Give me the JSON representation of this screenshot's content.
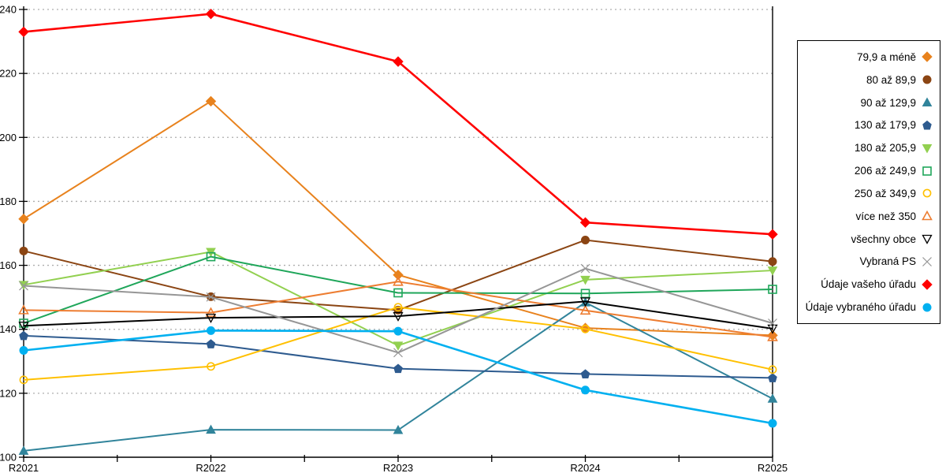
{
  "chart_data": {
    "type": "line",
    "title": "",
    "xlabel": "",
    "ylabel": "",
    "categories": [
      "R2021",
      "R2022",
      "R2023",
      "R2024",
      "R2025"
    ],
    "y_ticks": [
      100,
      120,
      140,
      160,
      180,
      200,
      220,
      240
    ],
    "ylim": [
      100,
      240
    ],
    "grid": "horizontal-dotted",
    "legend_position": "right",
    "series": [
      {
        "name": "79,9 a méně",
        "color": "#E8821D",
        "marker": "diamond",
        "fill": "solid",
        "values": [
          174.5,
          211.3,
          157.0,
          140.4,
          138.1
        ]
      },
      {
        "name": "80 až 89,9",
        "color": "#8B4513",
        "marker": "circle",
        "fill": "solid",
        "values": [
          164.5,
          150.2,
          146.0,
          167.9,
          161.2
        ]
      },
      {
        "name": "90 až 129,9",
        "color": "#31849B",
        "marker": "triangle-up",
        "fill": "solid",
        "values": [
          102.0,
          108.6,
          108.5,
          148.4,
          118.3
        ]
      },
      {
        "name": "130 až 179,9",
        "color": "#2E5B8F",
        "marker": "pentagon",
        "fill": "solid",
        "values": [
          138.0,
          135.4,
          127.7,
          126.0,
          124.8
        ]
      },
      {
        "name": "180 až 205,9",
        "color": "#92D050",
        "marker": "triangle-down",
        "fill": "solid",
        "values": [
          153.9,
          164.2,
          134.9,
          155.5,
          158.4
        ]
      },
      {
        "name": "206 až 249,9",
        "color": "#1FA65A",
        "marker": "square",
        "fill": "open",
        "values": [
          141.9,
          162.7,
          151.4,
          151.2,
          152.5
        ]
      },
      {
        "name": "250 až 349,9",
        "color": "#FFC000",
        "marker": "circle",
        "fill": "open",
        "values": [
          124.2,
          128.4,
          146.9,
          140.1,
          127.4
        ]
      },
      {
        "name": "více než 350",
        "color": "#ED7D31",
        "marker": "triangle-up",
        "fill": "open",
        "values": [
          146.0,
          145.2,
          154.9,
          145.9,
          137.6
        ]
      },
      {
        "name": "všechny obce",
        "color": "#000000",
        "marker": "triangle-down",
        "fill": "open",
        "values": [
          141.1,
          143.6,
          144.1,
          148.7,
          140.2
        ]
      },
      {
        "name": "Vybraná PS",
        "color": "#969696",
        "marker": "x",
        "fill": "open",
        "values": [
          153.6,
          150.1,
          132.7,
          159.0,
          141.9
        ]
      },
      {
        "name": "Údaje vašeho úřadu",
        "color": "#FF0000",
        "marker": "diamond",
        "fill": "solid",
        "values": [
          233.0,
          238.6,
          223.7,
          173.4,
          169.7
        ]
      },
      {
        "name": "Údaje vybraného úřadu",
        "color": "#00B0F0",
        "marker": "circle",
        "fill": "solid",
        "values": [
          133.4,
          139.6,
          139.4,
          121.0,
          110.6
        ]
      }
    ]
  },
  "colors": {
    "grid": "#ADADAD",
    "axis": "#000000"
  }
}
